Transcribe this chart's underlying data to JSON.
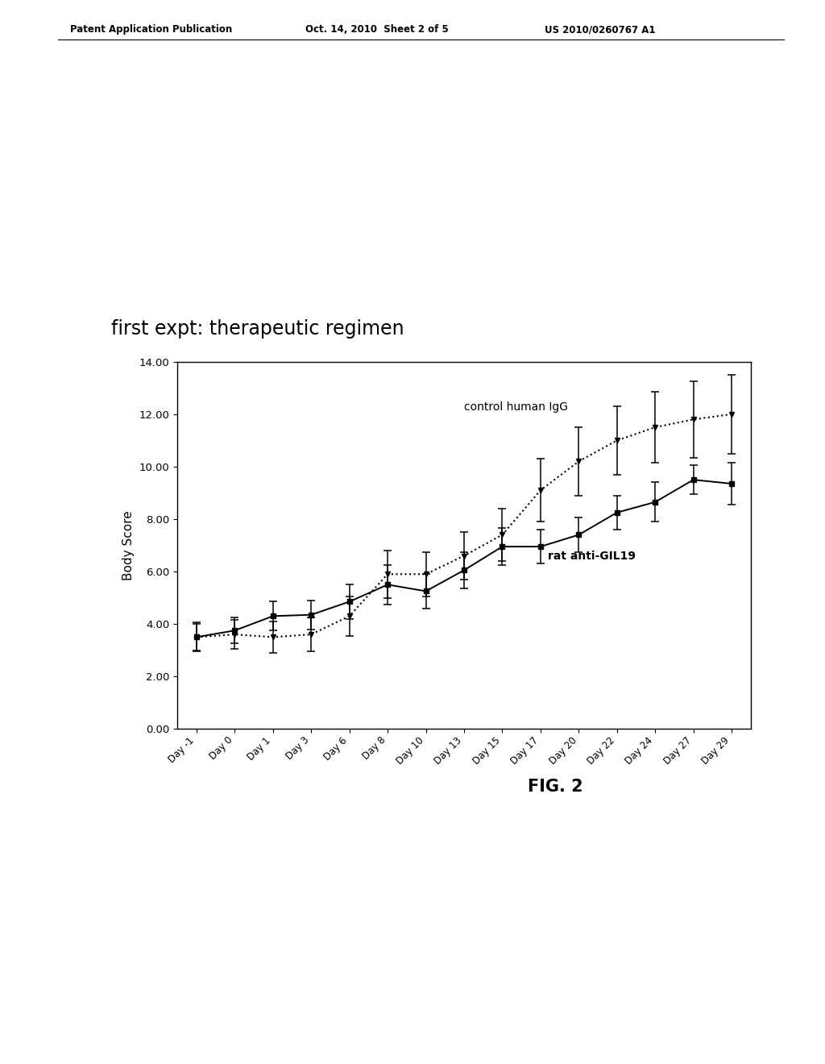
{
  "title_text": "first expt: therapeutic regimen",
  "fig_label": "FIG. 2",
  "patent_header_left": "Patent Application Publication",
  "patent_header_mid": "Oct. 14, 2010  Sheet 2 of 5",
  "patent_header_right": "US 2010/0260767 A1",
  "ylabel": "Body Score",
  "xlabels": [
    "Day -1",
    "Day 0",
    "Day 1",
    "Day 3",
    "Day 6",
    "Day 8",
    "Day 10",
    "Day 13",
    "Day 15",
    "Day 17",
    "Day 20",
    "Day 22",
    "Day 24",
    "Day 27",
    "Day 29"
  ],
  "ylim": [
    0,
    14
  ],
  "yticks": [
    0.0,
    2.0,
    4.0,
    6.0,
    8.0,
    10.0,
    12.0,
    14.0
  ],
  "solid_values": [
    3.5,
    3.75,
    4.3,
    4.35,
    4.85,
    5.5,
    5.25,
    6.05,
    6.95,
    6.95,
    7.4,
    8.25,
    8.65,
    9.5,
    9.35
  ],
  "solid_errors": [
    0.5,
    0.5,
    0.55,
    0.55,
    0.65,
    0.75,
    0.65,
    0.7,
    0.7,
    0.65,
    0.65,
    0.65,
    0.75,
    0.55,
    0.8
  ],
  "dotted_values": [
    3.5,
    3.6,
    3.5,
    3.6,
    4.3,
    5.9,
    5.9,
    6.6,
    7.4,
    9.1,
    10.2,
    11.0,
    11.5,
    11.8,
    12.0
  ],
  "dotted_errors": [
    0.55,
    0.55,
    0.6,
    0.65,
    0.75,
    0.9,
    0.85,
    0.9,
    1.0,
    1.2,
    1.3,
    1.3,
    1.35,
    1.45,
    1.5
  ],
  "solid_label": "rat anti-GIL19",
  "dotted_label": "control human IgG",
  "line_color": "#000000",
  "background_color": "#ffffff",
  "chart_bg": "#ffffff"
}
